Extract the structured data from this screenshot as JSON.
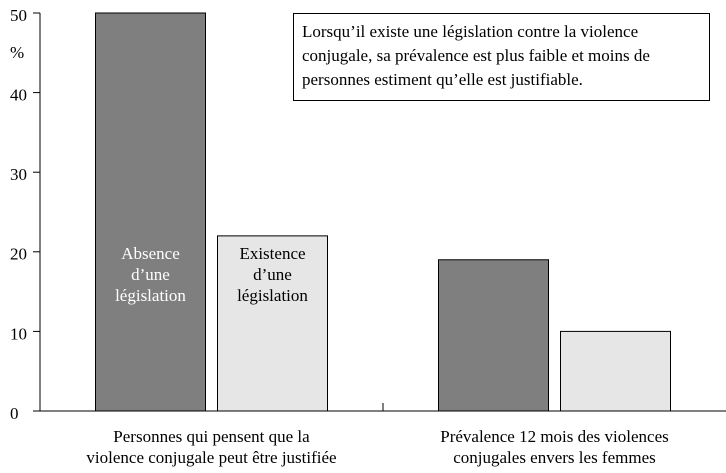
{
  "chart_data": {
    "type": "bar",
    "y_label": "%",
    "annotation": "Lorsqu’il existe une législation contre la violence conjugale, sa prévalence est plus faible et moins de personnes estiment qu’elle est justifiable.",
    "categories": [
      "Personnes qui pensent que la violence conjugale peut être justifiée",
      "Prévalence 12 mois des violences conjugales envers les femmes"
    ],
    "series": [
      {
        "name": "Absence d’une législation",
        "color": "#7f7f7f",
        "label_color": "#ffffff",
        "values": [
          50,
          19
        ]
      },
      {
        "name": "Existence d’une législation",
        "color": "#e6e6e6",
        "label_color": "#000000",
        "values": [
          22,
          10
        ]
      }
    ],
    "ylim": [
      0,
      50
    ],
    "yticks": [
      0,
      10,
      20,
      30,
      40,
      50
    ]
  }
}
